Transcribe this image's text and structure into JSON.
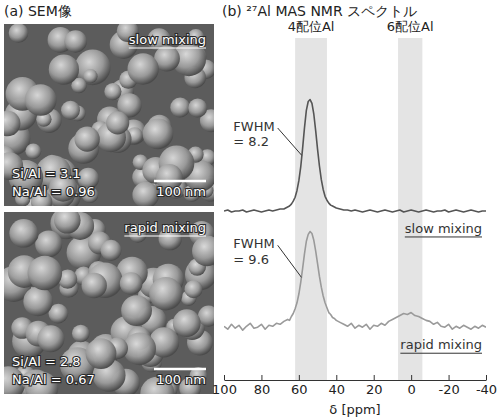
{
  "sem": {
    "title": "(a) SEM像",
    "panels": [
      {
        "label": "slow mixing",
        "si_al": "Si/Al = 3.1",
        "na_al": "Na/Al = 0.96",
        "scale_bar": "100 nm"
      },
      {
        "label": "rapid mixing",
        "si_al": "Si/Al = 2.8",
        "na_al": "Na/Al = 0.67",
        "scale_bar": "100 nm"
      }
    ]
  },
  "chart_data": {
    "type": "line",
    "title": "(b) ²⁷Al MAS NMR スペクトル",
    "x_label": "δ [ppm]",
    "x": [
      100,
      98,
      96,
      94,
      92,
      90,
      88,
      86,
      84,
      82,
      80,
      78,
      76,
      74,
      72,
      70,
      68,
      66,
      65,
      64,
      63,
      62,
      61,
      60,
      59,
      58,
      57,
      56,
      55,
      54,
      53,
      52,
      51,
      50,
      49,
      48,
      47,
      46,
      45,
      44,
      43,
      42,
      41,
      40,
      38,
      36,
      34,
      32,
      30,
      28,
      26,
      24,
      22,
      20,
      18,
      16,
      14,
      12,
      10,
      8,
      6,
      4,
      2,
      0,
      -2,
      -4,
      -6,
      -8,
      -10,
      -12,
      -14,
      -16,
      -18,
      -20,
      -22,
      -24,
      -26,
      -28,
      -30,
      -32,
      -34,
      -36,
      -38,
      -40
    ],
    "xlim": [
      100,
      -40
    ],
    "xticks": [
      100,
      80,
      60,
      40,
      20,
      0,
      -20,
      -40
    ],
    "ylim": [
      0,
      3.5
    ],
    "tick_labels": "x",
    "series": [
      {
        "name": "slow mixing",
        "color": "#555555",
        "values": [
          1.73,
          1.74,
          1.72,
          1.73,
          1.73,
          1.74,
          1.72,
          1.73,
          1.74,
          1.73,
          1.72,
          1.73,
          1.74,
          1.73,
          1.74,
          1.75,
          1.75,
          1.77,
          1.78,
          1.8,
          1.83,
          1.87,
          1.94,
          2.04,
          2.18,
          2.37,
          2.58,
          2.76,
          2.85,
          2.87,
          2.83,
          2.72,
          2.55,
          2.36,
          2.19,
          2.05,
          1.95,
          1.88,
          1.84,
          1.81,
          1.79,
          1.78,
          1.77,
          1.76,
          1.75,
          1.74,
          1.74,
          1.73,
          1.74,
          1.73,
          1.72,
          1.73,
          1.74,
          1.73,
          1.72,
          1.73,
          1.74,
          1.73,
          1.72,
          1.73,
          1.74,
          1.72,
          1.73,
          1.74,
          1.73,
          1.72,
          1.73,
          1.74,
          1.73,
          1.72,
          1.73,
          1.73,
          1.74,
          1.72,
          1.73,
          1.74,
          1.73,
          1.72,
          1.73,
          1.74,
          1.73,
          1.72,
          1.73,
          1.73
        ]
      },
      {
        "name": "rapid mixing",
        "color": "#9a9a9a",
        "values": [
          0.55,
          0.52,
          0.57,
          0.53,
          0.56,
          0.51,
          0.55,
          0.58,
          0.53,
          0.54,
          0.57,
          0.52,
          0.56,
          0.55,
          0.58,
          0.57,
          0.6,
          0.62,
          0.61,
          0.65,
          0.68,
          0.73,
          0.79,
          0.88,
          1.0,
          1.14,
          1.29,
          1.42,
          1.49,
          1.52,
          1.5,
          1.43,
          1.32,
          1.19,
          1.06,
          0.95,
          0.86,
          0.79,
          0.74,
          0.69,
          0.67,
          0.64,
          0.63,
          0.61,
          0.59,
          0.57,
          0.55,
          0.58,
          0.53,
          0.56,
          0.54,
          0.57,
          0.52,
          0.56,
          0.55,
          0.58,
          0.56,
          0.6,
          0.62,
          0.64,
          0.66,
          0.68,
          0.67,
          0.69,
          0.66,
          0.65,
          0.63,
          0.61,
          0.6,
          0.57,
          0.59,
          0.55,
          0.54,
          0.57,
          0.52,
          0.55,
          0.53,
          0.56,
          0.54,
          0.52,
          0.55,
          0.53,
          0.56,
          0.54
        ]
      }
    ],
    "bands": [
      {
        "label": "4配位Al",
        "range": [
          62,
          45
        ]
      },
      {
        "label": "6配位Al",
        "range": [
          7,
          -6
        ]
      }
    ],
    "annotations": [
      {
        "text": "FWHM = 8.2",
        "x": 95,
        "y": 2.55,
        "target_x": 58.5,
        "target_y": 2.3
      },
      {
        "text": "FWHM = 9.6",
        "x": 95,
        "y": 1.35,
        "target_x": 58.6,
        "target_y": 1.05
      }
    ]
  }
}
